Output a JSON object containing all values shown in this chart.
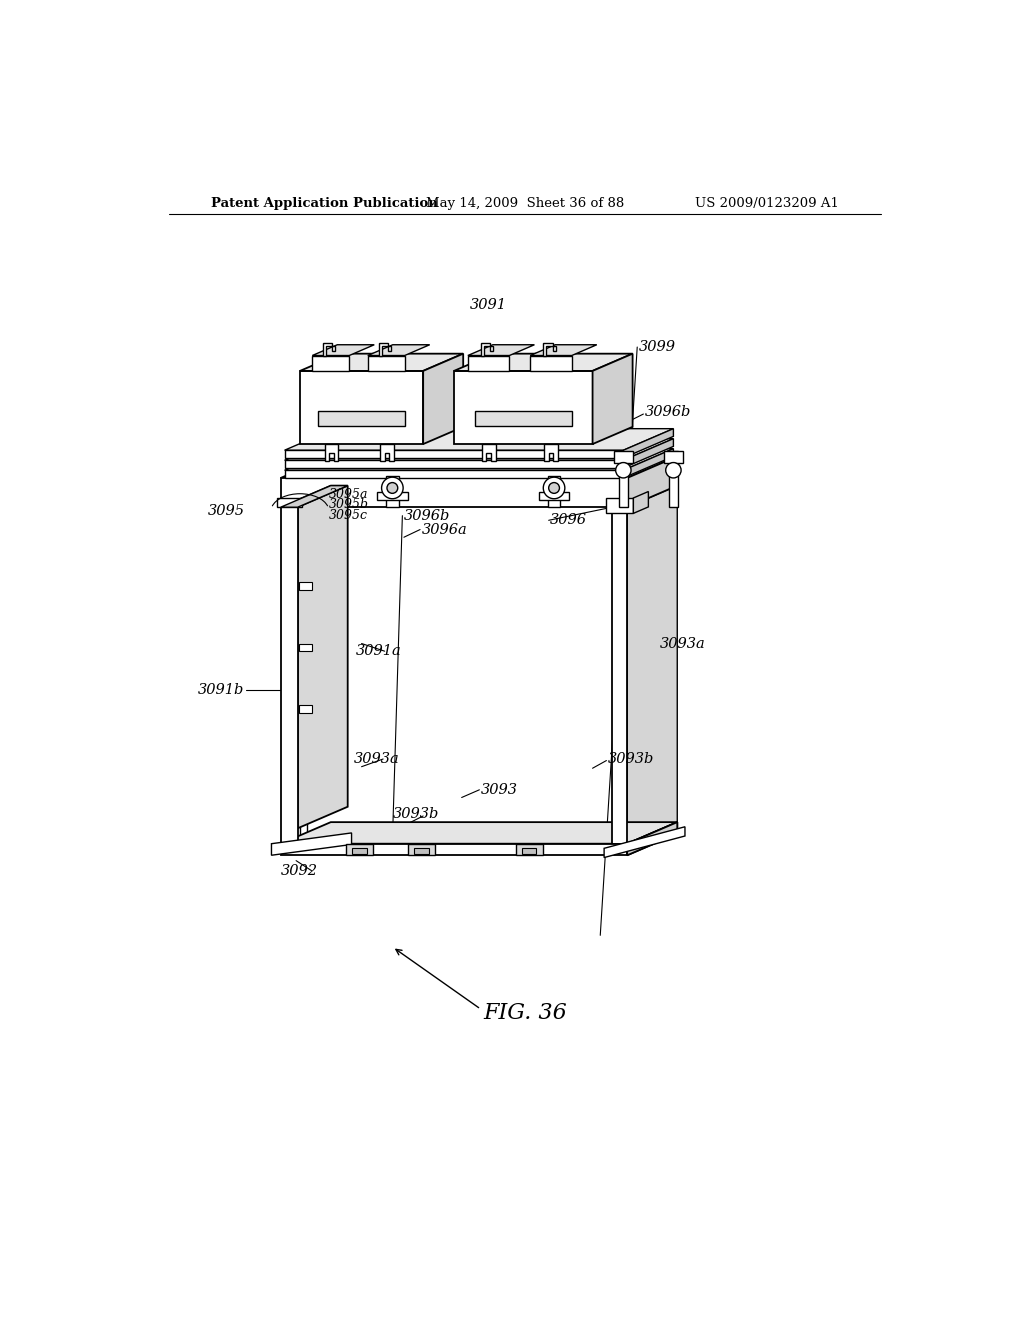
{
  "title_left": "Patent Application Publication",
  "title_mid": "May 14, 2009  Sheet 36 of 88",
  "title_right": "US 2009/0123209 A1",
  "fig_label": "FIG. 36",
  "background_color": "#ffffff",
  "line_color": "#000000"
}
